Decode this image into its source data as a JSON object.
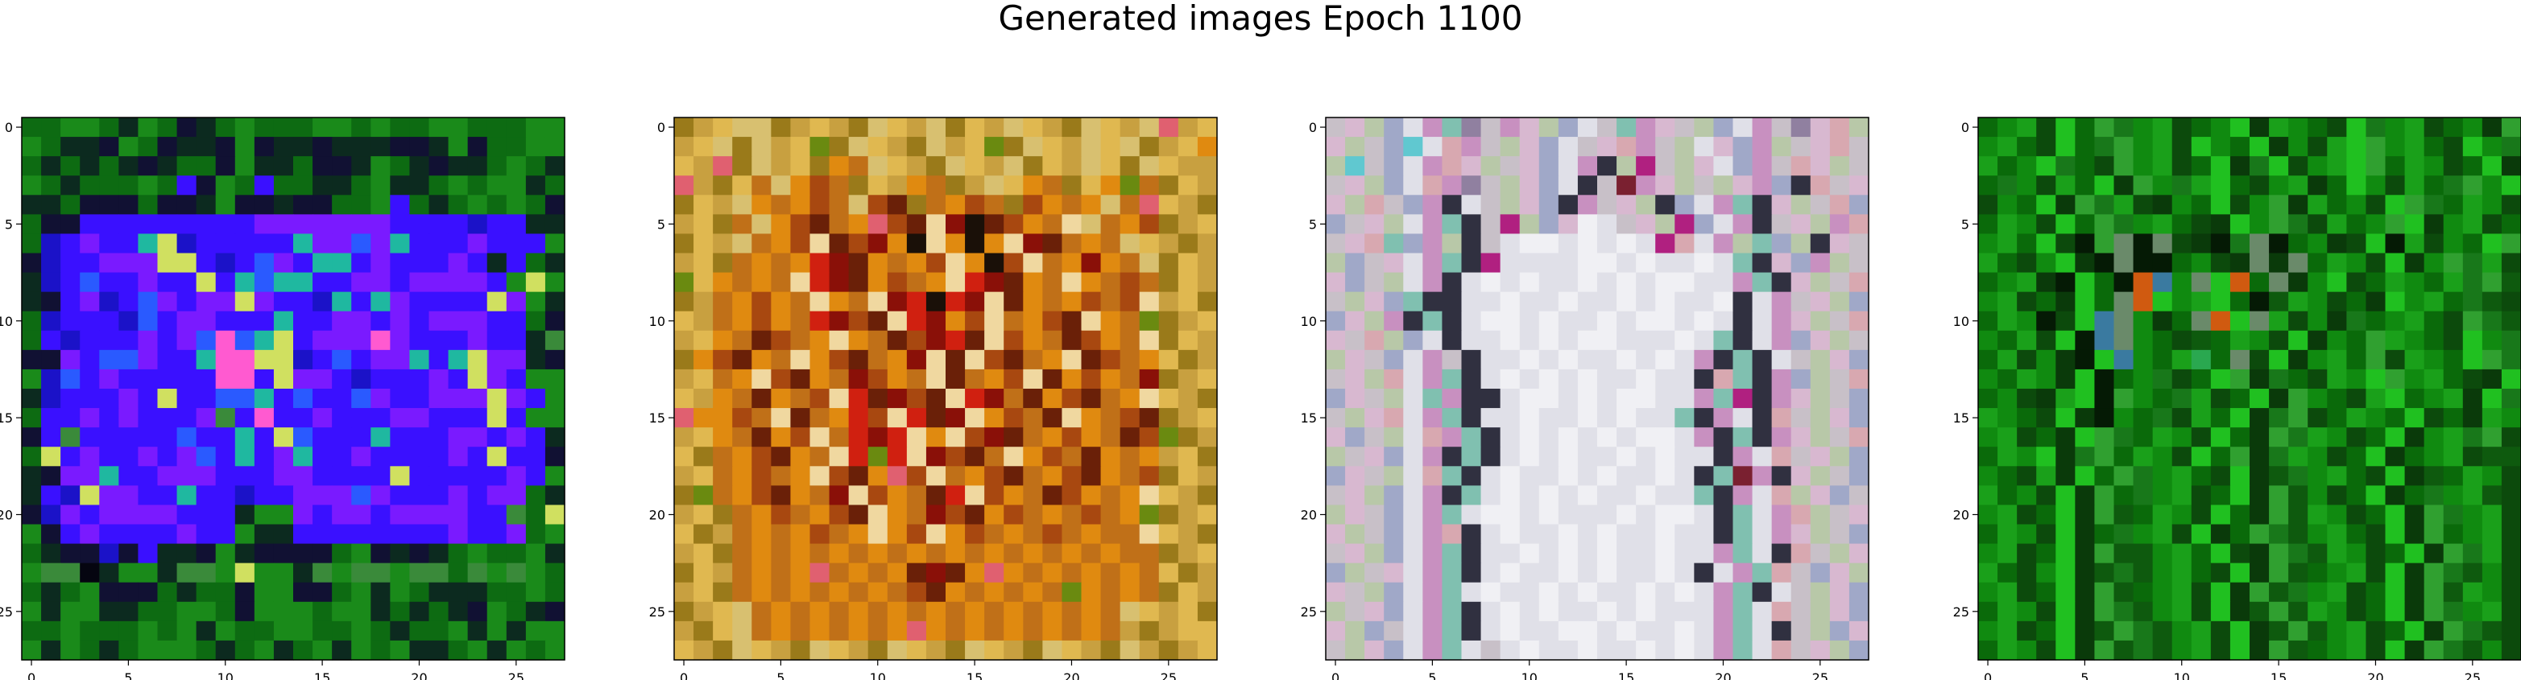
{
  "title": "Generated images Epoch 1100",
  "chart_data": [
    {
      "type": "heatmap",
      "description_grid": "28x28 RGB pixel image",
      "grid_size": [
        28,
        28
      ],
      "xticks": [
        "0",
        "5",
        "10",
        "15",
        "20",
        "25"
      ],
      "yticks": [
        "0",
        "5",
        "10",
        "15",
        "20",
        "25"
      ],
      "palette": [
        "#0a3a0a",
        "#0d6b12",
        "#1a8a1a",
        "#0c2a1f",
        "#111133",
        "#1b12c8",
        "#3a10ff",
        "#7a1aff",
        "#2a5aff",
        "#1fb8a0",
        "#d0e060",
        "#ff5ad0",
        "#3a8a3a",
        "#050510"
      ],
      "rows": [
        "1122132143121112212112211122",
        "2133421433424334333443241122",
        "1313134311423314432134331213",
        "2131112164216113312331212231",
        "3314441443244344112613121214",
        "1446666666667777777666656633",
        "1567669A56666697787966676662",
        "4566777AA6568769967666763613",
        "356866766A6989966776777762A2",
        "34675687677A766596976666A723",
        "1566658677666966776767776614",
        "1656667678B89A6777B76667663C",
        "4476887669BBAA568677969A7734",
        "2586766666BB6A776566676A7622",
        "3566676A6688968668766777A762",
        "1667676667C6B66766677666A622",
        "46C6666686696A86669666776763",
        "1A6766767869679667666676A664",
        "3477966777666776666A66666762",
        "365A776696656677787666767713",
        "4576777766632276776777766C1A",
        "2467666676623366666666766712",
        "1344546334234444124343121123",
        "2CCD3223CC2A223C2CC2CC1C2C21",
        "1312444131142244123213331121",
        "2322331122142221223131342134",
        "1121112123211221121311232322",
        "2321312221312312321233123212"
      ]
    },
    {
      "type": "heatmap",
      "description_grid": "28x28 RGB pixel image",
      "grid_size": [
        28,
        28
      ],
      "xticks": [
        "0",
        "5",
        "10",
        "15",
        "20",
        "25"
      ],
      "yticks": [
        "0",
        "5",
        "10",
        "15",
        "20",
        "25"
      ],
      "palette": [
        "#9a7a1a",
        "#c8a040",
        "#e0b850",
        "#d8c070",
        "#c07018",
        "#e08a10",
        "#a84810",
        "#6a2008",
        "#8a1008",
        "#d02010",
        "#f0d8a0",
        "#6a8a10",
        "#e06070",
        "#1a1008"
      ],
      "rows": [
        "0123301210321302132103213C12",
        "1230312B03210312B03213230125",
        "21C0312054321032130213203211",
        "C1024356402154013254025B4021",
        "021354564367045640654534C210",
        "1204356745C67A8D7654A3456012",
        "0213456A7685DA5D5A8745432101",
        "12045459875456A5D6A458543021",
        "B25454A9875645A98754A5464021",
        "0145654A54A89D98A7545646A120",
        "21456549867A9856A4567A54B012",
        "12547645A5476897A6547654A021",
        "056754A567458A7A6745A7645201",
        "1245A67548654A7456A756548012",
        "21547546A97867A984756745A210",
        "C5564A74596A978A5647A5467012",
        "1254756A4989A5A6874565476B01",
        "20456754A9B9A8674A5647545120",
        "1245645A675C6A45674567546021",
        "0B4567548A65479A65476545A210",
        "1204564567A5486756454645B012",
        "2014545645A56A5645464544A210",
        "1204545454545454545454544012",
        "0214545C45457875C54545454201",
        "12045454545467545454B5454021",
        "0123454545454545454545432120",
        "102345454545C545454545410122",
        "2103210321032103210321031012"
      ]
    },
    {
      "type": "heatmap",
      "description_grid": "28x28 RGB pixel image",
      "grid_size": [
        28,
        28
      ],
      "xticks": [
        "0",
        "5",
        "10",
        "15",
        "20",
        "25"
      ],
      "yticks": [
        "0",
        "5",
        "10",
        "15",
        "20",
        "25"
      ],
      "palette": [
        "#c8c0c8",
        "#d8b8d0",
        "#b8c8a8",
        "#a0a8c8",
        "#e0e0e8",
        "#c890c0",
        "#80c0b0",
        "#9080a0",
        "#d8a8b0",
        "#60c8d0",
        "#303040",
        "#b02080",
        "#7a2030",
        "#f0f0f4"
      ],
      "rows": [
        "0123456705123406510234507182",
        "1203948502134018502413520180",
        "29034581201345A2B02143508120",
        "0123485702134A0C51202153A801",
        "128035A40213A5012A3456A12083",
        "3012456A0B231D4012B345A01258",
        "0186352A04DD4D4D4B8452632A10",
        "2301456AB4444DD4D44D46A13520",
        "130245A4D4D44D4D4DD4456A1208",
        "02136AA44D44D44D4D44DA450123",
        "3125A6A4DD4D44D4DD4D4A451208",
        "108234A44D4D4DD444D46A453120",
        "2103450A44D4D44D4D45A6A40213",
        "0128456A4D4D4D44D44A86A53208",
        "3102465AA4DD4D4DD4456BA51203",
        "0218456A44D44D4D446A54A80213",
        "13024856A4D4D4D4DD45A6A51208",
        "201345A6A4D4D44D4D44A5480123",
        "3102486A4D44D4D44D4A6C5A1203",
        "012345A64D4D4D44D446A5482130",
        "21034564DD4D444D4DD4A6458201",
        "1203458A4D44D4D44D44A6451203",
        "0123456A44D4D4D44D44564A8021",
        "3201456A4D44D4D44D4A45680312",
        "10234564D44D4D44D4D456A40213",
        "2013456A4D4D44D4D44456480213",
        "1230456A4D44DD4D44D4564A0231",
        "0213456404D44D44D4D456480123"
      ]
    },
    {
      "type": "heatmap",
      "description_grid": "28x28 RGB pixel image",
      "grid_size": [
        28,
        28
      ],
      "xticks": [
        "0",
        "5",
        "10",
        "15",
        "20",
        "25"
      ],
      "yticks": [
        "0",
        "5",
        "10",
        "15",
        "20",
        "25"
      ],
      "palette": [
        "#0a6a0a",
        "#108a10",
        "#1aa01a",
        "#0c4a0c",
        "#20c020",
        "#0a3a0a",
        "#30a030",
        "#18781a",
        "#051a05",
        "#3a7aa0",
        "#d05a10",
        "#6a8a6a",
        "#2aa850",
        "#0e5a0e"
      ],
      "rows": [
        "0123406712301452103471230156",
        "1203407612341045132461203417",
        "2014703612304574312460213045",
        "0713204561724031250413207614",
        "3104567235104316520134670213",
        "0213406712035416732016451230",
        "1204386B8B3587B8015348231046",
        "2031458B880135B5B02134516723",
        "01258408A91B4A0B51430210276D",
        "1230540BA412408D2130541207D3",
        "0218349B150BA4B231570120367D",
        "1023489B103D0213451062103417",
        "02315849102C0B34512063210467",
        "1021548017304657032146120354",
        "0135248610723045610324012547",
        "2103458107320457630210430521",
        "1230546702134056721304512763",
        "02145760213406572130450123DD",
        "103254067120345D7120345D0213",
        "2013456071230456D130450712D3",
        "1230456D02134056D21304567123",
        "0213450712345067D12034560123",
        "1230456DD12043567D2130456723",
        "203145D7D1203456D01234567D13",
        "1230456D0123456D71230456D213",
        "02134567D12345D6D21304567123",
        "123045D67D12345D6D12304567D3",
        "0213456D7D123456D01234567D13"
      ]
    }
  ]
}
